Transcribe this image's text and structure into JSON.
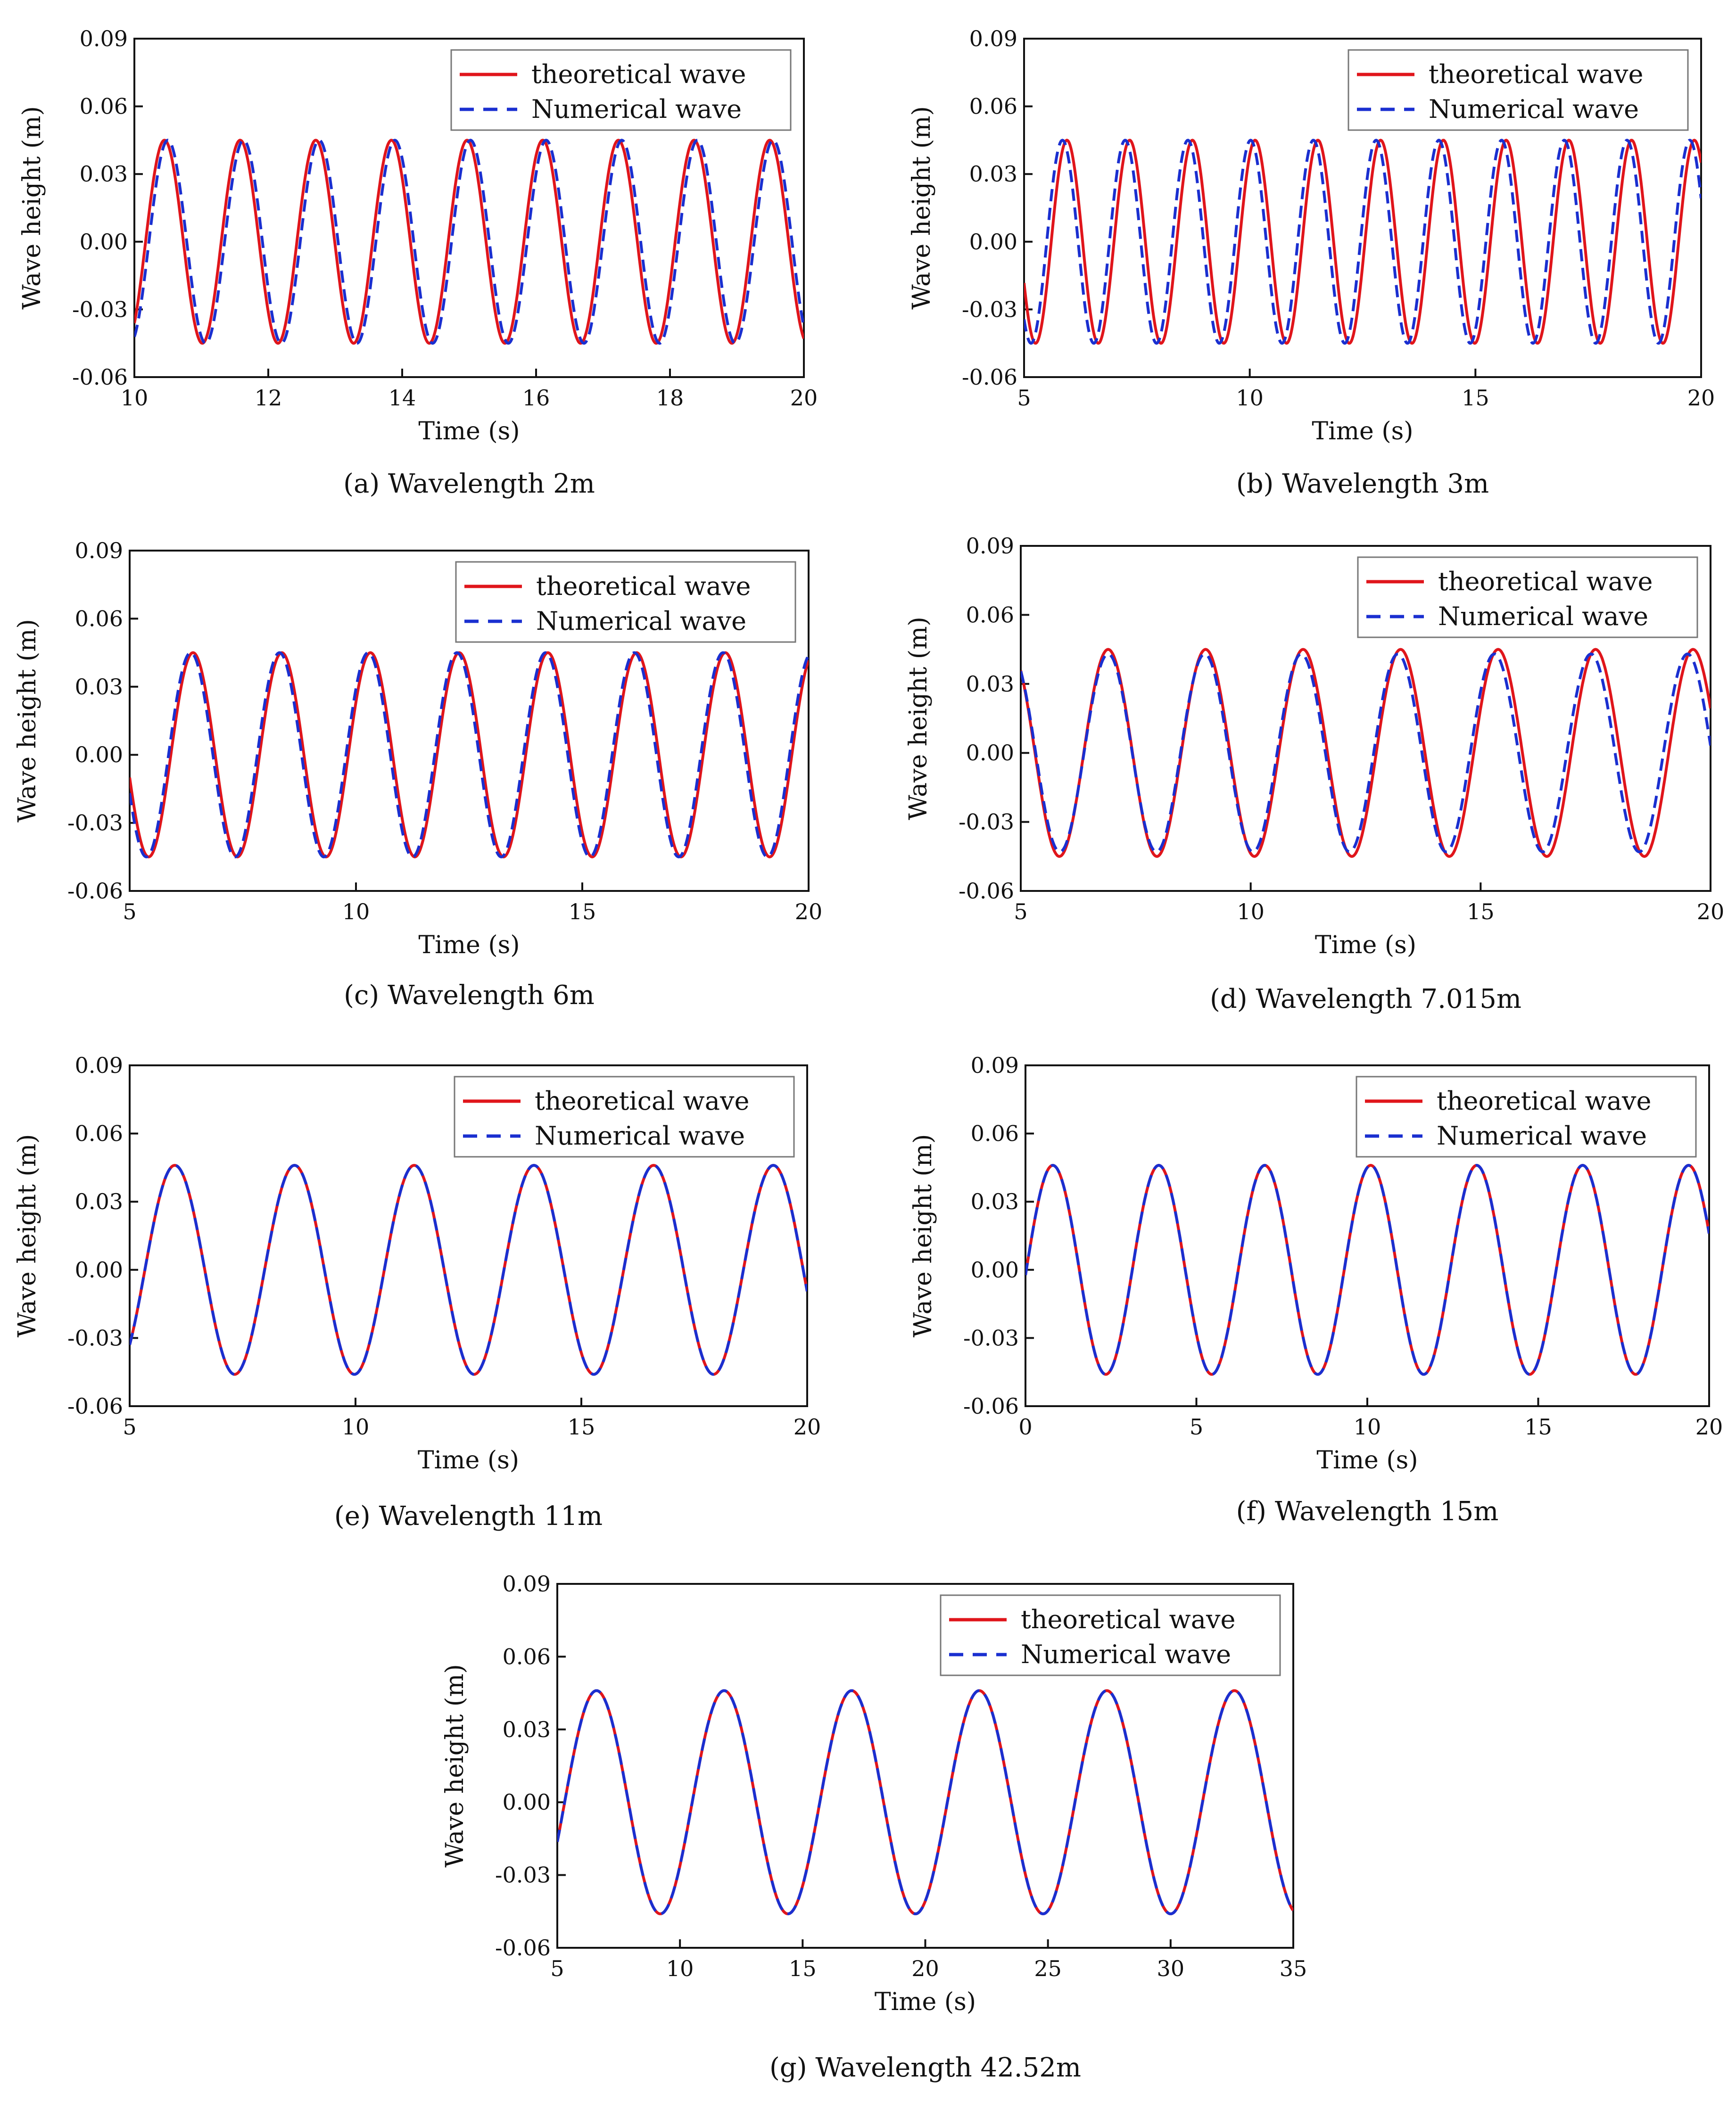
{
  "figure": {
    "description_note": "",
    "legend_labels": {
      "theoretical": "theoretical wave",
      "numerical": "Numerical wave"
    },
    "colors": {
      "theoretical": "#e0151b",
      "numerical": "#1a2fd0",
      "axis": "#111111"
    }
  },
  "chart_data": [
    {
      "id": "a",
      "type": "line",
      "caption": "(a) Wavelength 2m",
      "title": "",
      "xlabel": "Time (s)",
      "ylabel": "Wave height (m)",
      "xlim": [
        10,
        20
      ],
      "ylim": [
        -0.06,
        0.09
      ],
      "xticks": [
        10,
        12,
        14,
        16,
        18,
        20
      ],
      "xtick_labels": [
        "10",
        "12",
        "14",
        "16",
        "18",
        "20"
      ],
      "yticks": [
        -0.06,
        -0.03,
        0.0,
        0.03,
        0.06,
        0.09
      ],
      "ytick_labels": [
        "-0.06",
        "-0.03",
        "0.00",
        "0.03",
        "0.06",
        "0.09"
      ],
      "grid": false,
      "legend": "top-right",
      "series": [
        {
          "name": "theoretical wave",
          "amplitude": 0.045,
          "period": 1.13,
          "first_crest_time": 10.45
        },
        {
          "name": "Numerical wave",
          "amplitude": 0.045,
          "period": 1.13,
          "first_crest_time": 10.5
        }
      ]
    },
    {
      "id": "b",
      "type": "line",
      "caption": "(b) Wavelength 3m",
      "title": "",
      "xlabel": "Time (s)",
      "ylabel": "Wave height (m)",
      "xlim": [
        5,
        20
      ],
      "ylim": [
        -0.06,
        0.09
      ],
      "xticks": [
        5,
        10,
        15,
        20
      ],
      "xtick_labels": [
        "5",
        "10",
        "15",
        "20"
      ],
      "yticks": [
        -0.06,
        -0.03,
        0.0,
        0.03,
        0.06,
        0.09
      ],
      "ytick_labels": [
        "-0.06",
        "-0.03",
        "0.00",
        "0.03",
        "0.06",
        "0.09"
      ],
      "grid": false,
      "legend": "top-right",
      "series": [
        {
          "name": "theoretical wave",
          "amplitude": 0.045,
          "period": 1.39,
          "first_crest_time": 5.95
        },
        {
          "name": "Numerical wave",
          "amplitude": 0.045,
          "period": 1.39,
          "first_crest_time": 5.85
        }
      ]
    },
    {
      "id": "c",
      "type": "line",
      "caption": "(c) Wavelength 6m",
      "title": "",
      "xlabel": "Time (s)",
      "ylabel": "Wave height (m)",
      "xlim": [
        5,
        20
      ],
      "ylim": [
        -0.06,
        0.09
      ],
      "xticks": [
        5,
        10,
        15,
        20
      ],
      "xtick_labels": [
        "5",
        "10",
        "15",
        "20"
      ],
      "yticks": [
        -0.06,
        -0.03,
        0.0,
        0.03,
        0.06,
        0.09
      ],
      "ytick_labels": [
        "-0.06",
        "-0.03",
        "0.00",
        "0.03",
        "0.06",
        "0.09"
      ],
      "grid": false,
      "legend": "top-right",
      "series": [
        {
          "name": "theoretical wave",
          "amplitude": 0.045,
          "period": 1.96,
          "first_crest_time": 6.4
        },
        {
          "name": "Numerical wave",
          "amplitude": 0.045,
          "period": 1.96,
          "first_crest_time": 6.35
        }
      ]
    },
    {
      "id": "d",
      "type": "line",
      "caption": "(d) Wavelength 7.015m",
      "title": "",
      "xlabel": "Time (s)",
      "ylabel": "Wave height (m)",
      "xlim": [
        5,
        20
      ],
      "ylim": [
        -0.06,
        0.09
      ],
      "xticks": [
        5,
        10,
        15,
        20
      ],
      "xtick_labels": [
        "5",
        "10",
        "15",
        "20"
      ],
      "yticks": [
        -0.06,
        -0.03,
        0.0,
        0.03,
        0.06,
        0.09
      ],
      "ytick_labels": [
        "-0.06",
        "-0.03",
        "0.00",
        "0.03",
        "0.06",
        "0.09"
      ],
      "grid": false,
      "legend": "top-right",
      "series": [
        {
          "name": "theoretical wave",
          "amplitude": 0.045,
          "period": 2.12,
          "first_crest_time": 6.9
        },
        {
          "name": "Numerical wave",
          "amplitude": 0.043,
          "period": 2.1,
          "first_crest_time": 6.9
        }
      ]
    },
    {
      "id": "e",
      "type": "line",
      "caption": "(e) Wavelength 11m",
      "title": "",
      "xlabel": "Time (s)",
      "ylabel": "Wave height (m)",
      "xlim": [
        5,
        20
      ],
      "ylim": [
        -0.06,
        0.09
      ],
      "xticks": [
        5,
        10,
        15,
        20
      ],
      "xtick_labels": [
        "5",
        "10",
        "15",
        "20"
      ],
      "yticks": [
        -0.06,
        -0.03,
        0.0,
        0.03,
        0.06,
        0.09
      ],
      "ytick_labels": [
        "-0.06",
        "-0.03",
        "0.00",
        "0.03",
        "0.06",
        "0.09"
      ],
      "grid": false,
      "legend": "top-right",
      "series": [
        {
          "name": "theoretical wave",
          "amplitude": 0.046,
          "period": 2.65,
          "first_crest_time": 6.0
        },
        {
          "name": "Numerical wave",
          "amplitude": 0.046,
          "period": 2.65,
          "first_crest_time": 6.0
        }
      ]
    },
    {
      "id": "f",
      "type": "line",
      "caption": "(f) Wavelength 15m",
      "title": "",
      "xlabel": "Time (s)",
      "ylabel": "Wave height (m)",
      "xlim": [
        0,
        20
      ],
      "ylim": [
        -0.06,
        0.09
      ],
      "xticks": [
        0,
        5,
        10,
        15,
        20
      ],
      "xtick_labels": [
        "0",
        "5",
        "10",
        "15",
        "20"
      ],
      "yticks": [
        -0.06,
        -0.03,
        0.0,
        0.03,
        0.06,
        0.09
      ],
      "ytick_labels": [
        "-0.06",
        "-0.03",
        "0.00",
        "0.03",
        "0.06",
        "0.09"
      ],
      "grid": false,
      "legend": "top-right",
      "series": [
        {
          "name": "theoretical wave",
          "amplitude": 0.046,
          "period": 3.1,
          "first_crest_time": 0.8
        },
        {
          "name": "Numerical wave",
          "amplitude": 0.046,
          "period": 3.1,
          "first_crest_time": 0.8
        }
      ]
    },
    {
      "id": "g",
      "type": "line",
      "caption": "(g) Wavelength 42.52m",
      "title": "",
      "xlabel": "Time (s)",
      "ylabel": "Wave height (m)",
      "xlim": [
        5,
        35
      ],
      "ylim": [
        -0.06,
        0.09
      ],
      "xticks": [
        5,
        10,
        15,
        20,
        25,
        30,
        35
      ],
      "xtick_labels": [
        "5",
        "10",
        "15",
        "20",
        "25",
        "30",
        "35"
      ],
      "yticks": [
        -0.06,
        -0.03,
        0.0,
        0.03,
        0.06,
        0.09
      ],
      "ytick_labels": [
        "-0.06",
        "-0.03",
        "0.00",
        "0.03",
        "0.06",
        "0.09"
      ],
      "grid": false,
      "legend": "top-right",
      "series": [
        {
          "name": "theoretical wave",
          "amplitude": 0.046,
          "period": 5.2,
          "first_crest_time": 6.6
        },
        {
          "name": "Numerical wave",
          "amplitude": 0.046,
          "period": 5.2,
          "first_crest_time": 6.6
        }
      ]
    }
  ]
}
